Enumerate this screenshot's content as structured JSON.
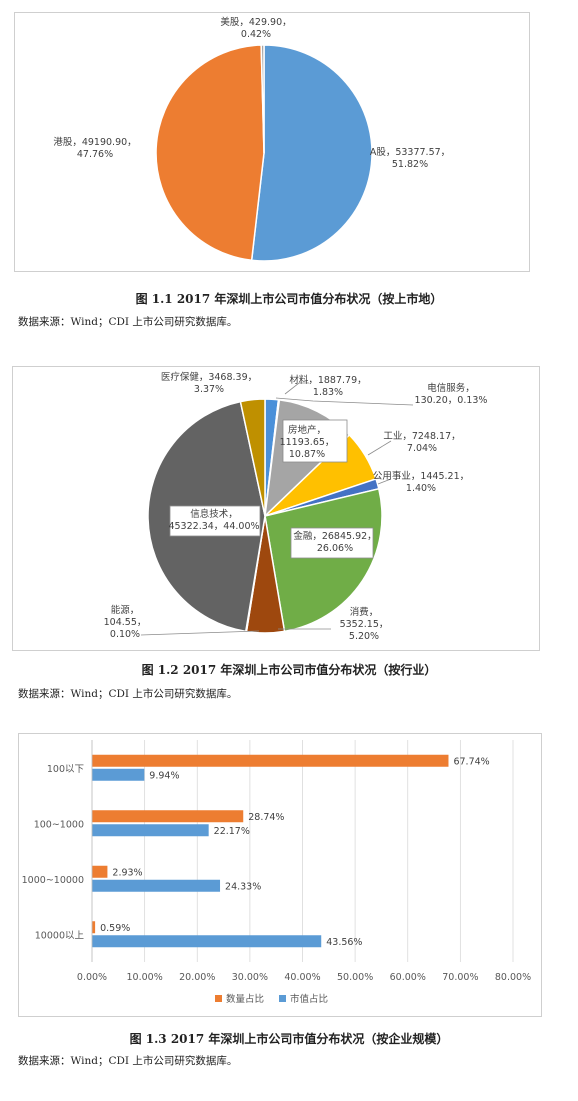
{
  "chart_data": [
    {
      "type": "pie",
      "title": "图 1.1 2017 年深圳上市公司市值分布状况（按上市地）",
      "source": "数据来源：Wind；CDI 上市公司研究数据库。",
      "slices": [
        {
          "name": "A股",
          "value": 53377.57,
          "percent": "51.82%",
          "color": "#5B9BD5",
          "label": [
            "A股，53377.57，",
            "51.82%"
          ]
        },
        {
          "name": "港股",
          "value": 49190.9,
          "percent": "47.76%",
          "color": "#ED7D31",
          "label": [
            "港股，49190.90，",
            "47.76%"
          ]
        },
        {
          "name": "美股",
          "value": 429.9,
          "percent": "0.42%",
          "color": "#A5A5A5",
          "label": [
            "美股，429.90，",
            "0.42%"
          ]
        }
      ]
    },
    {
      "type": "pie",
      "title": "图 1.2 2017 年深圳上市公司市值分布状况（按行业）",
      "source": "数据来源：Wind；CDI 上市公司研究数据库。",
      "slices": [
        {
          "name": "材料",
          "value": 1887.79,
          "percent": "1.83%",
          "color": "#4A90D9",
          "label": [
            "材料，1887.79，",
            "1.83%"
          ]
        },
        {
          "name": "电信服务",
          "value": 130.2,
          "percent": "0.13%",
          "color": "#9E9E9E",
          "label": [
            "电信服务，",
            "130.20，0.13%"
          ]
        },
        {
          "name": "房地产",
          "value": 11193.65,
          "percent": "10.87%",
          "color": "#A5A5A5",
          "label": [
            "房地产，",
            "11193.65，",
            "10.87%"
          ]
        },
        {
          "name": "工业",
          "value": 7248.17,
          "percent": "7.04%",
          "color": "#FFC000",
          "label": [
            "工业，7248.17，",
            "7.04%"
          ]
        },
        {
          "name": "公用事业",
          "value": 1445.21,
          "percent": "1.40%",
          "color": "#4472C4",
          "label": [
            "公用事业，1445.21，",
            "1.40%"
          ]
        },
        {
          "name": "金融",
          "value": 26845.92,
          "percent": "26.06%",
          "color": "#70AD47",
          "label": [
            "金融，26845.92，",
            "26.06%"
          ]
        },
        {
          "name": "消费",
          "value": 5352.15,
          "percent": "5.20%",
          "color": "#9E480E",
          "label": [
            "消费，",
            "5352.15，",
            "5.20%"
          ]
        },
        {
          "name": "能源",
          "value": 104.55,
          "percent": "0.10%",
          "color": "#333F50",
          "label": [
            "能源，",
            "104.55，",
            "0.10%"
          ]
        },
        {
          "name": "信息技术",
          "value": 45322.34,
          "percent": "44.00%",
          "color": "#636363",
          "label": [
            "信息技术，",
            "45322.34，44.00%"
          ]
        },
        {
          "name": "医疗保健",
          "value": 3468.39,
          "percent": "3.37%",
          "color": "#BF9000",
          "label": [
            "医疗保健，3468.39，",
            "3.37%"
          ]
        }
      ]
    },
    {
      "type": "bar",
      "orientation": "horizontal",
      "title": "图 1.3 2017 年深圳上市公司市值分布状况（按企业规模）",
      "source": "数据来源：Wind；CDI 上市公司研究数据库。",
      "categories": [
        "100以下",
        "100~1000",
        "1000~10000",
        "10000以上"
      ],
      "series": [
        {
          "name": "数量占比",
          "color": "#ED7D31",
          "values": [
            67.74,
            28.74,
            2.93,
            0.59
          ],
          "labels": [
            "67.74%",
            "28.74%",
            "2.93%",
            "0.59%"
          ]
        },
        {
          "name": "市值占比",
          "color": "#5B9BD5",
          "values": [
            9.94,
            22.17,
            24.33,
            43.56
          ],
          "labels": [
            "9.94%",
            "22.17%",
            "24.33%",
            "43.56%"
          ]
        }
      ],
      "xlim": [
        0,
        80
      ],
      "xticks": [
        "0.00%",
        "10.00%",
        "20.00%",
        "30.00%",
        "40.00%",
        "50.00%",
        "60.00%",
        "70.00%",
        "80.00%"
      ],
      "legend": "bottom",
      "grid": true
    }
  ]
}
